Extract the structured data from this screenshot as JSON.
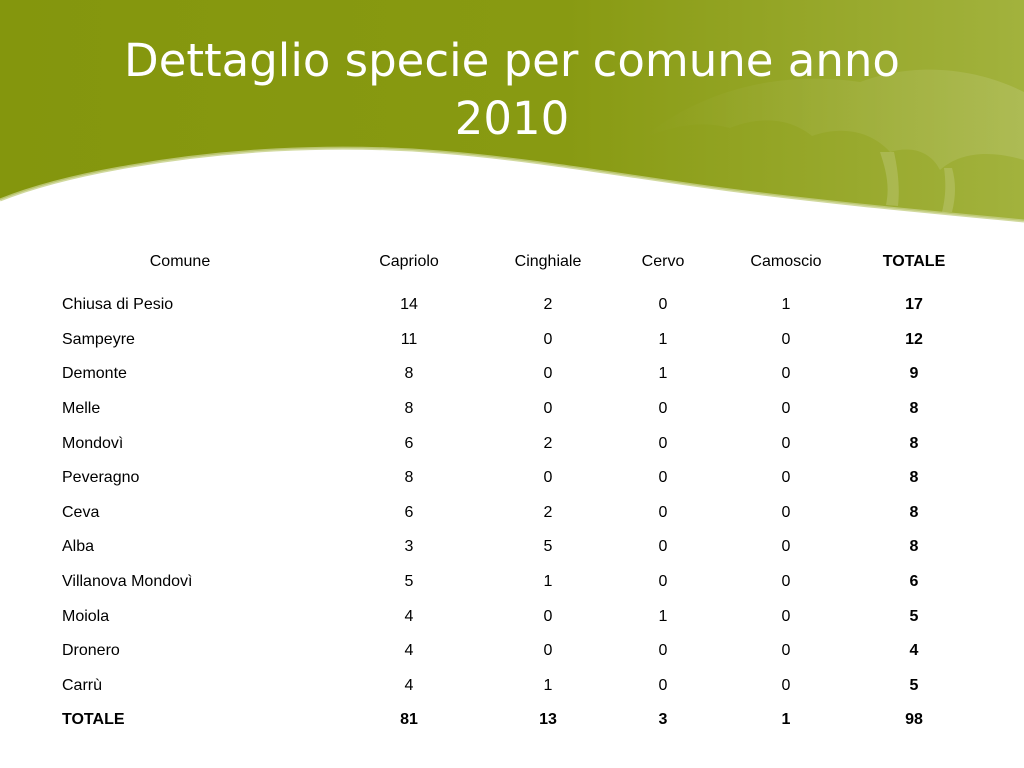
{
  "slide": {
    "title": "Dettaglio specie per comune anno 2010",
    "colors": {
      "banner_dark": "#84960d",
      "banner_light": "#a2b23d",
      "title": "#ffffff",
      "text": "#000000"
    }
  },
  "table": {
    "headers": [
      "Comune",
      "Capriolo",
      "Cinghiale",
      "Cervo",
      "Camoscio",
      "TOTALE"
    ],
    "rows": [
      [
        "Chiusa di Pesio",
        "14",
        "2",
        "0",
        "1",
        "17"
      ],
      [
        "Sampeyre",
        "11",
        "0",
        "1",
        "0",
        "12"
      ],
      [
        "Demonte",
        "8",
        "0",
        "1",
        "0",
        "9"
      ],
      [
        "Melle",
        "8",
        "0",
        "0",
        "0",
        "8"
      ],
      [
        "Mondovì",
        "6",
        "2",
        "0",
        "0",
        "8"
      ],
      [
        "Peveragno",
        "8",
        "0",
        "0",
        "0",
        "8"
      ],
      [
        "Ceva",
        "6",
        "2",
        "0",
        "0",
        "8"
      ],
      [
        "Alba",
        "3",
        "5",
        "0",
        "0",
        "8"
      ],
      [
        "Villanova Mondovì",
        "5",
        "1",
        "0",
        "0",
        "6"
      ],
      [
        "Moiola",
        "4",
        "0",
        "1",
        "0",
        "5"
      ],
      [
        "Dronero",
        "4",
        "0",
        "0",
        "0",
        "4"
      ],
      [
        "Carrù",
        "4",
        "1",
        "0",
        "0",
        "5"
      ]
    ],
    "total_row": [
      "TOTALE",
      "81",
      "13",
      "3",
      "1",
      "98"
    ]
  }
}
